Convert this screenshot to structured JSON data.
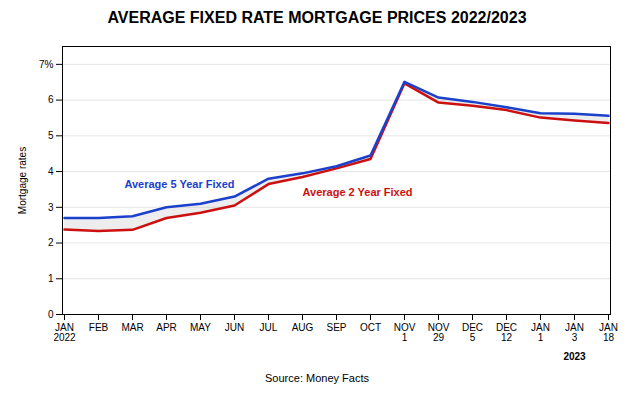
{
  "chart_data": {
    "type": "line",
    "title": "AVERAGE FIXED RATE MORTGAGE PRICES 2022/2023",
    "y_label": "Mortgage rates",
    "caption": "Source: Money Facts",
    "annotations": [
      "2023"
    ],
    "categories": [
      "JAN\n2022",
      "FEB",
      "MAR",
      "APR",
      "MAY",
      "JUN",
      "JUL",
      "AUG",
      "SEP",
      "OCT",
      "NOV\n1",
      "NOV\n29",
      "DEC\n5",
      "DEC\n12",
      "JAN\n1",
      "JAN\n3",
      "JAN\n18"
    ],
    "series": [
      {
        "name": "Average 5 Year Fixed",
        "color": "#1a40cc",
        "values": [
          2.7,
          2.7,
          2.75,
          3.0,
          3.1,
          3.3,
          3.8,
          3.95,
          4.15,
          4.45,
          6.51,
          6.07,
          5.95,
          5.8,
          5.63,
          5.62,
          5.56
        ]
      },
      {
        "name": "Average 2 Year Fixed",
        "color": "#cc1010",
        "values": [
          2.38,
          2.34,
          2.37,
          2.7,
          2.85,
          3.05,
          3.65,
          3.85,
          4.09,
          4.35,
          6.47,
          5.93,
          5.84,
          5.72,
          5.51,
          5.43,
          5.36
        ]
      }
    ],
    "ylim": [
      0,
      7.5
    ],
    "yticks": [
      0,
      1,
      2,
      3,
      4,
      5,
      6,
      {
        "value": 7,
        "label": "7%"
      }
    ],
    "grid": true
  }
}
